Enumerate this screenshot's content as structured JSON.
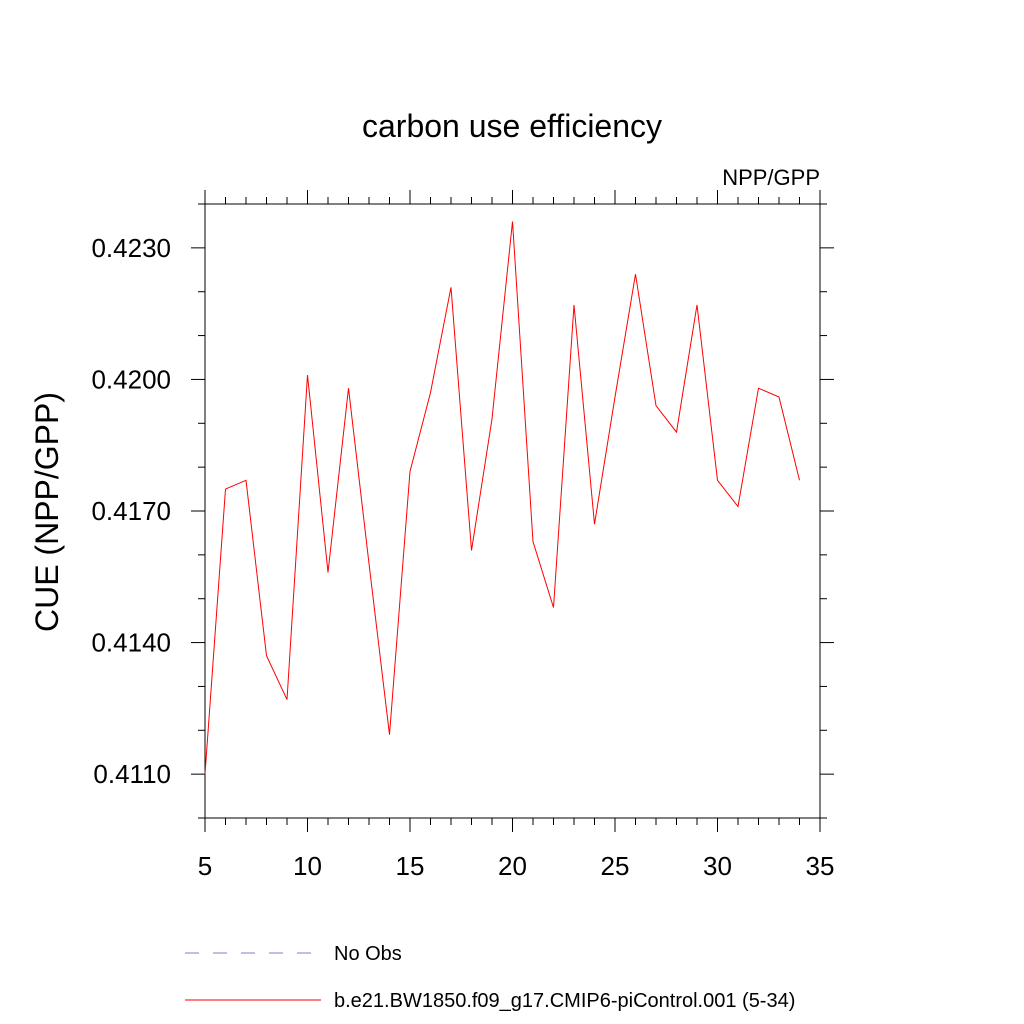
{
  "chart_data": {
    "type": "line",
    "title": "carbon use efficiency",
    "subtitle": "NPP/GPP",
    "ylabel": "CUE  (NPP/GPP)",
    "xlabel": "",
    "xlim": [
      5,
      35
    ],
    "ylim": [
      0.41,
      0.424
    ],
    "xticks": [
      5,
      10,
      15,
      20,
      25,
      30,
      35
    ],
    "yticks": [
      0.411,
      0.414,
      0.417,
      0.42,
      0.423
    ],
    "ytick_labels": [
      "0.4110",
      "0.4140",
      "0.4170",
      "0.4200",
      "0.4230"
    ],
    "grid": false,
    "legend_position": "bottom",
    "legend": [
      {
        "label": "No Obs",
        "color": "#7f7fd0",
        "style": "dashed"
      },
      {
        "label": "b.e21.BW1850.f09_g17.CMIP6-piControl.001 (5-34)",
        "color": "#ff0000",
        "style": "solid"
      }
    ],
    "series": [
      {
        "name": "b.e21.BW1850.f09_g17.CMIP6-piControl.001 (5-34)",
        "color": "#ff0000",
        "x": [
          5,
          6,
          7,
          8,
          9,
          10,
          11,
          12,
          13,
          14,
          15,
          16,
          17,
          18,
          19,
          20,
          21,
          22,
          23,
          24,
          25,
          26,
          27,
          28,
          29,
          30,
          31,
          32,
          33,
          34
        ],
        "values": [
          0.411,
          0.4175,
          0.4177,
          0.4137,
          0.4127,
          0.4201,
          0.4156,
          0.4198,
          0.4158,
          0.4119,
          0.4179,
          0.4197,
          0.4221,
          0.4161,
          0.4191,
          0.4236,
          0.4163,
          0.4148,
          0.4217,
          0.4167,
          0.4196,
          0.4224,
          0.4194,
          0.4188,
          0.4217,
          0.4177,
          0.4171,
          0.4198,
          0.4196,
          0.4177
        ]
      }
    ]
  }
}
